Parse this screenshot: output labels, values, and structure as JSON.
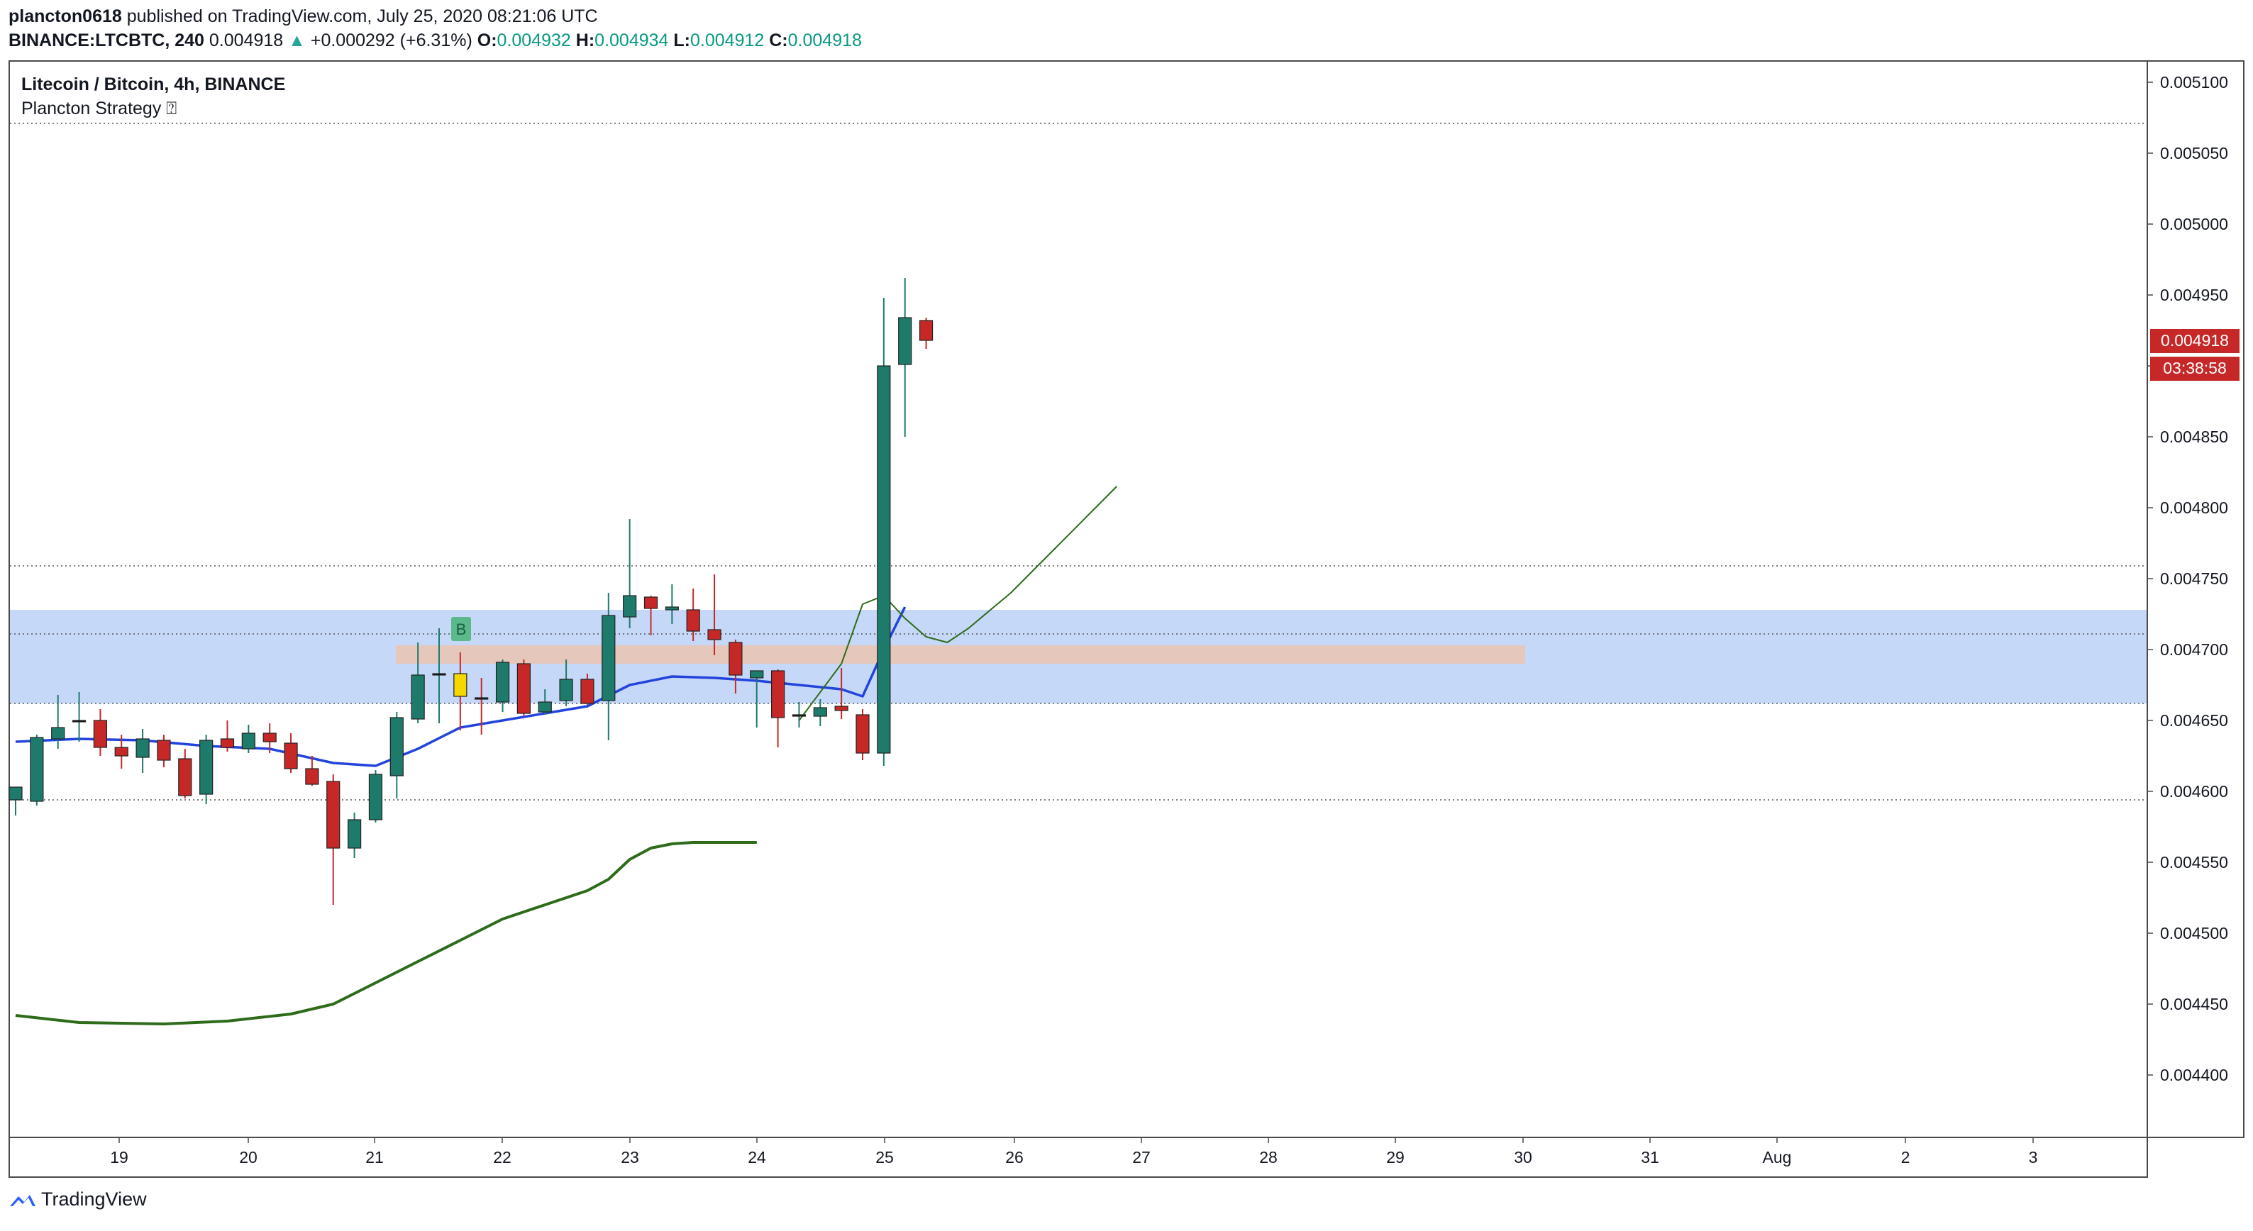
{
  "header": {
    "author": "plancton0618",
    "published_text": "published on TradingView.com, July 25, 2020 08:21:06 UTC",
    "symbol": "BINANCE:LTCBTC, 240",
    "last": "0.004918",
    "change_arrow": "▲",
    "change": "+0.000292 (+6.31%)",
    "o_label": "O:",
    "o_value": "0.004932",
    "h_label": "H:",
    "h_value": "0.004934",
    "l_label": "L:",
    "l_value": "0.004912",
    "c_label": "C:",
    "c_value": "0.004918"
  },
  "legend": {
    "title": "Litecoin / Bitcoin, 4h, BINANCE",
    "indicator": "Plancton Strategy ⍰"
  },
  "footer": {
    "brand": "TradingView"
  },
  "colors": {
    "up": "#1e7b6c",
    "down": "#c62828",
    "doji": "#f5d800",
    "ema_blue": "#2244dd",
    "ma_green": "#2e6b1a",
    "zone_blue": "#c5d8f7",
    "zone_orange": "#e8c5b5",
    "price_tag": "#c62828"
  },
  "chart_data": {
    "type": "candlestick",
    "title": "Litecoin / Bitcoin, 4h, BINANCE",
    "ylim": [
      0.00436,
      0.00511
    ],
    "y_ticks": [
      "0.005100",
      "0.005050",
      "0.005000",
      "0.004950",
      "0.004900",
      "0.004850",
      "0.004800",
      "0.004750",
      "0.004700",
      "0.004650",
      "0.004600",
      "0.004550",
      "0.004500",
      "0.004450",
      "0.004400"
    ],
    "x_ticks": [
      "19",
      "20",
      "21",
      "22",
      "23",
      "24",
      "25",
      "26",
      "27",
      "28",
      "29",
      "30",
      "31",
      "Aug",
      "2",
      "3"
    ],
    "price_label": "0.004918",
    "countdown_label": "03:38:58",
    "signal_label": "B",
    "candles": [
      {
        "o": 0.004594,
        "h": 0.0046,
        "l": 0.004583,
        "c": 0.004603
      },
      {
        "o": 0.004593,
        "h": 0.00464,
        "l": 0.00459,
        "c": 0.004638
      },
      {
        "o": 0.004637,
        "h": 0.004668,
        "l": 0.00463,
        "c": 0.004645
      },
      {
        "o": 0.004649,
        "h": 0.00467,
        "l": 0.004635,
        "c": 0.00465
      },
      {
        "o": 0.00465,
        "h": 0.004658,
        "l": 0.004625,
        "c": 0.004631
      },
      {
        "o": 0.004631,
        "h": 0.00464,
        "l": 0.004616,
        "c": 0.004625
      },
      {
        "o": 0.004624,
        "h": 0.004644,
        "l": 0.004613,
        "c": 0.004637
      },
      {
        "o": 0.004636,
        "h": 0.00464,
        "l": 0.004617,
        "c": 0.004622
      },
      {
        "o": 0.004623,
        "h": 0.00463,
        "l": 0.004595,
        "c": 0.004597
      },
      {
        "o": 0.004598,
        "h": 0.00464,
        "l": 0.004591,
        "c": 0.004636
      },
      {
        "o": 0.004637,
        "h": 0.00465,
        "l": 0.004628,
        "c": 0.004631
      },
      {
        "o": 0.00463,
        "h": 0.004647,
        "l": 0.004627,
        "c": 0.004641
      },
      {
        "o": 0.004641,
        "h": 0.004648,
        "l": 0.004627,
        "c": 0.004635
      },
      {
        "o": 0.004634,
        "h": 0.004641,
        "l": 0.004613,
        "c": 0.004616
      },
      {
        "o": 0.004616,
        "h": 0.004625,
        "l": 0.004604,
        "c": 0.004605
      },
      {
        "o": 0.004607,
        "h": 0.004612,
        "l": 0.00452,
        "c": 0.00456
      },
      {
        "o": 0.00456,
        "h": 0.004585,
        "l": 0.004553,
        "c": 0.00458
      },
      {
        "o": 0.00458,
        "h": 0.004615,
        "l": 0.004578,
        "c": 0.004612
      },
      {
        "o": 0.004611,
        "h": 0.004656,
        "l": 0.004595,
        "c": 0.004652
      },
      {
        "o": 0.004651,
        "h": 0.004705,
        "l": 0.004648,
        "c": 0.004682
      },
      {
        "o": 0.004683,
        "h": 0.004715,
        "l": 0.004648,
        "c": 0.004683
      },
      {
        "o": 0.004683,
        "h": 0.004698,
        "l": 0.004643,
        "c": 0.004667
      },
      {
        "o": 0.004666,
        "h": 0.00468,
        "l": 0.00464,
        "c": 0.004665
      },
      {
        "o": 0.004663,
        "h": 0.004693,
        "l": 0.004656,
        "c": 0.004691
      },
      {
        "o": 0.00469,
        "h": 0.004693,
        "l": 0.004653,
        "c": 0.004655
      },
      {
        "o": 0.004656,
        "h": 0.004672,
        "l": 0.004654,
        "c": 0.004663
      },
      {
        "o": 0.004664,
        "h": 0.004693,
        "l": 0.00466,
        "c": 0.004679
      },
      {
        "o": 0.004679,
        "h": 0.004683,
        "l": 0.004661,
        "c": 0.004662
      },
      {
        "o": 0.004664,
        "h": 0.00474,
        "l": 0.004636,
        "c": 0.004724
      },
      {
        "o": 0.004723,
        "h": 0.004792,
        "l": 0.004715,
        "c": 0.004738
      },
      {
        "o": 0.004737,
        "h": 0.004738,
        "l": 0.00471,
        "c": 0.004729
      },
      {
        "o": 0.004728,
        "h": 0.004746,
        "l": 0.004718,
        "c": 0.00473
      },
      {
        "o": 0.004728,
        "h": 0.004743,
        "l": 0.004706,
        "c": 0.004713
      },
      {
        "o": 0.004714,
        "h": 0.004753,
        "l": 0.004696,
        "c": 0.004707
      },
      {
        "o": 0.004705,
        "h": 0.004707,
        "l": 0.004669,
        "c": 0.004682
      },
      {
        "o": 0.00468,
        "h": 0.004685,
        "l": 0.004645,
        "c": 0.004685
      },
      {
        "o": 0.004685,
        "h": 0.004686,
        "l": 0.004631,
        "c": 0.004652
      },
      {
        "o": 0.004653,
        "h": 0.004663,
        "l": 0.004645,
        "c": 0.004654
      },
      {
        "o": 0.004653,
        "h": 0.004665,
        "l": 0.004646,
        "c": 0.004659
      },
      {
        "o": 0.00466,
        "h": 0.004687,
        "l": 0.004651,
        "c": 0.004657
      },
      {
        "o": 0.004654,
        "h": 0.004658,
        "l": 0.004622,
        "c": 0.004627
      },
      {
        "o": 0.004627,
        "h": 0.004948,
        "l": 0.004618,
        "c": 0.0049
      },
      {
        "o": 0.004901,
        "h": 0.004962,
        "l": 0.00485,
        "c": 0.004934
      },
      {
        "o": 0.004932,
        "h": 0.004934,
        "l": 0.004912,
        "c": 0.004918
      }
    ],
    "series": [
      {
        "points": [
          [
            0,
            0.004635
          ],
          [
            3,
            0.004637
          ],
          [
            6,
            0.004636
          ],
          [
            9,
            0.004632
          ],
          [
            12,
            0.00463
          ],
          [
            15,
            0.00462
          ],
          [
            17,
            0.004618
          ],
          [
            19,
            0.00463
          ],
          [
            21,
            0.004645
          ],
          [
            23,
            0.00465
          ],
          [
            25,
            0.004655
          ],
          [
            27,
            0.00466
          ],
          [
            29,
            0.004675
          ],
          [
            31,
            0.004681
          ],
          [
            33,
            0.00468
          ],
          [
            35,
            0.004678
          ],
          [
            37,
            0.004675
          ],
          [
            39,
            0.004672
          ],
          [
            40,
            0.004667
          ],
          [
            41,
            0.0047
          ],
          [
            42,
            0.00473
          ]
        ]
      },
      {
        "points": [
          [
            0,
            0.004442
          ],
          [
            3,
            0.004437
          ],
          [
            7,
            0.004436
          ],
          [
            10,
            0.004438
          ],
          [
            13,
            0.004443
          ],
          [
            15,
            0.00445
          ],
          [
            17,
            0.004465
          ],
          [
            19,
            0.00448
          ],
          [
            21,
            0.004495
          ],
          [
            23,
            0.00451
          ],
          [
            25,
            0.00452
          ],
          [
            27,
            0.00453
          ],
          [
            28,
            0.004538
          ],
          [
            29,
            0.004552
          ],
          [
            30,
            0.00456
          ],
          [
            31,
            0.004563
          ],
          [
            32,
            0.004564
          ],
          [
            35,
            0.004564
          ]
        ]
      },
      {
        "points": [
          [
            37,
            0.00465
          ],
          [
            39,
            0.00469
          ],
          [
            40,
            0.004732
          ],
          [
            41,
            0.004738
          ],
          [
            42,
            0.004722
          ],
          [
            43,
            0.004709
          ],
          [
            44,
            0.004705
          ],
          [
            45,
            0.004715
          ],
          [
            47,
            0.00474
          ],
          [
            49,
            0.00477
          ],
          [
            51,
            0.0048
          ],
          [
            52,
            0.004815
          ]
        ]
      }
    ],
    "zones": [
      {
        "from": 0.004662,
        "to": 0.004728
      },
      {
        "from": 0.00469,
        "to": 0.004703
      }
    ],
    "hlines": [
      0.005071,
      0.004759,
      0.004711,
      0.004662,
      0.004594
    ]
  }
}
